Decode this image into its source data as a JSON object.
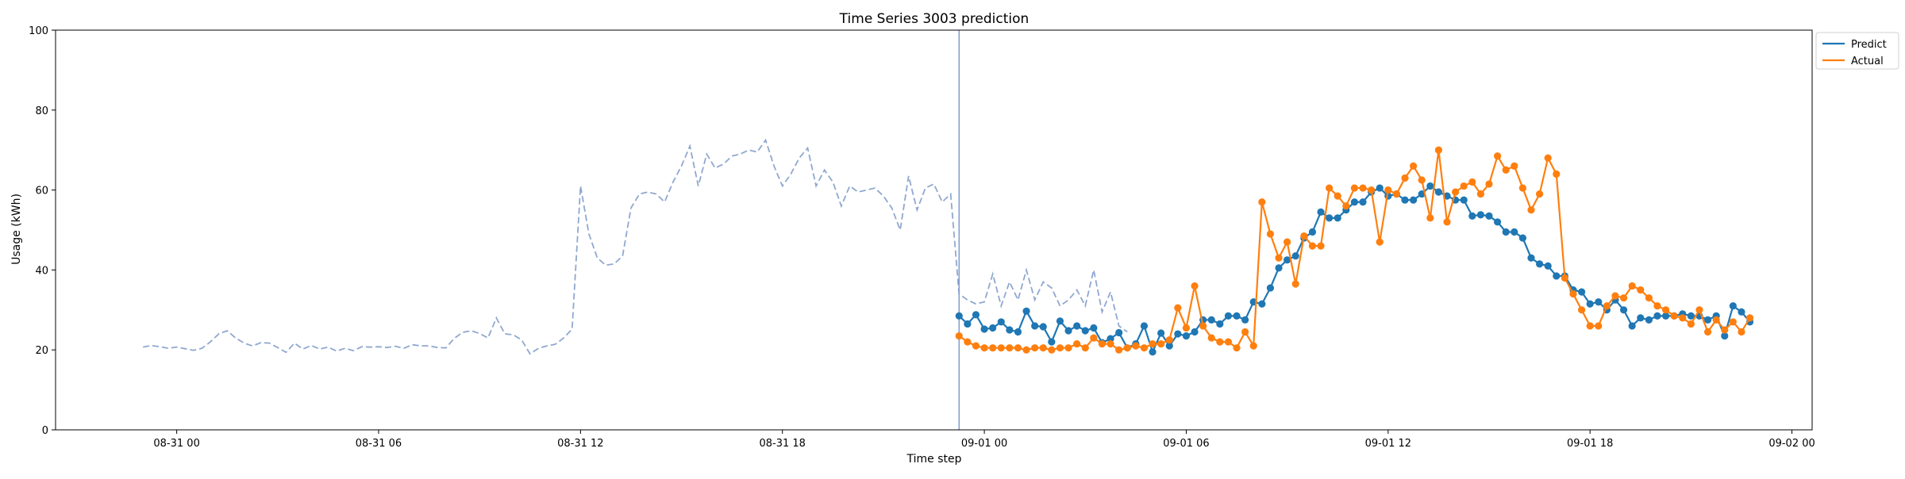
{
  "chart_data": {
    "type": "line",
    "title": "Time Series 3003 prediction",
    "xlabel": "Time step",
    "ylabel": "Usage (kWh)",
    "ylim": [
      0,
      100
    ],
    "yticks": [
      0,
      20,
      40,
      60,
      80,
      100
    ],
    "xlim": [
      "2024-08-30 20:24",
      "2024-09-02 00:36"
    ],
    "xticks": [
      {
        "label": "08-31 00",
        "t": "2024-08-31 00:00"
      },
      {
        "label": "08-31 06",
        "t": "2024-08-31 06:00"
      },
      {
        "label": "08-31 12",
        "t": "2024-08-31 12:00"
      },
      {
        "label": "08-31 18",
        "t": "2024-08-31 18:00"
      },
      {
        "label": "09-01 00",
        "t": "2024-09-01 00:00"
      },
      {
        "label": "09-01 06",
        "t": "2024-09-01 06:00"
      },
      {
        "label": "09-01 12",
        "t": "2024-09-01 12:00"
      },
      {
        "label": "09-01 18",
        "t": "2024-09-01 18:00"
      },
      {
        "label": "09-02 00",
        "t": "2024-09-02 00:00"
      }
    ],
    "x_interval_minutes": 15,
    "grid": false,
    "legend_position": "outside top-right",
    "vline": "2024-08-31 23:15",
    "colors": {
      "history": "#90a8cf",
      "predict": "#1f77b4",
      "actual": "#ff7f0e",
      "vline": "#7a98cc"
    },
    "legend": [
      {
        "label": "Predict",
        "color": "#1f77b4"
      },
      {
        "label": "Actual",
        "color": "#ff7f0e"
      }
    ],
    "history": {
      "start": "2024-08-30 23:00",
      "step_minutes": 15,
      "style": "dashed",
      "values": [
        20.7,
        21.1,
        20.8,
        20.4,
        20.7,
        20.3,
        19.9,
        20.4,
        22.0,
        24.0,
        24.8,
        23.0,
        21.7,
        21.0,
        21.8,
        21.7,
        20.6,
        19.4,
        21.7,
        20.2,
        21.1,
        20.2,
        20.7,
        19.7,
        20.4,
        19.8,
        20.8,
        20.7,
        20.8,
        20.6,
        20.9,
        20.4,
        21.3,
        21.0,
        21.0,
        20.6,
        20.5,
        22.9,
        24.4,
        24.8,
        24.1,
        23.0,
        28.0,
        24.0,
        23.8,
        22.5,
        19.0,
        20.4,
        21.0,
        21.4,
        23.0,
        25.2,
        61.0,
        49.0,
        43.0,
        41.2,
        41.5,
        43.5,
        55.5,
        59.0,
        59.5,
        59.0,
        57.0,
        62.0,
        66.0,
        71.0,
        61.0,
        69.0,
        65.5,
        66.5,
        68.5,
        69.0,
        70.0,
        69.5,
        72.5,
        66.0,
        61.0,
        64.0,
        68.0,
        70.5,
        61.0,
        65.0,
        62.0,
        56.0,
        61.0,
        59.5,
        60.0,
        60.5,
        58.5,
        55.5,
        50.0,
        63.5,
        55.0,
        60.5,
        61.5,
        57.0,
        59.0,
        34.0,
        32.5,
        31.5,
        32.0,
        39.0,
        31.0,
        37.0,
        32.5,
        40.0,
        32.5,
        37.0,
        35.5,
        31.0,
        32.5,
        35.0,
        31.0,
        40.0,
        29.5,
        34.5,
        26.0,
        24.5
      ]
    },
    "series": [
      {
        "name": "Predict",
        "start": "2024-08-31 23:15",
        "step_minutes": 15,
        "values": [
          28.5,
          26.5,
          28.8,
          25.2,
          25.5,
          27.0,
          25.0,
          24.5,
          29.7,
          26.0,
          25.8,
          22.0,
          27.2,
          24.8,
          26.0,
          24.8,
          25.5,
          21.8,
          22.8,
          24.3,
          20.5,
          21.5,
          26.0,
          19.5,
          24.2,
          21.0,
          24.0,
          23.5,
          24.5,
          27.5,
          27.5,
          26.5,
          28.5,
          28.5,
          27.5,
          32.0,
          31.5,
          35.5,
          40.5,
          42.5,
          43.5,
          48.0,
          49.5,
          54.5,
          53.0,
          53.0,
          55.0,
          57.0,
          57.0,
          59.5,
          60.5,
          58.5,
          59.0,
          57.5,
          57.5,
          59.0,
          61.0,
          59.5,
          58.5,
          57.5,
          57.5,
          53.5,
          53.8,
          53.5,
          52.0,
          49.5,
          49.5,
          48.0,
          43.0,
          41.5,
          41.0,
          38.5,
          38.5,
          35.0,
          34.5,
          31.5,
          32.0,
          30.0,
          32.5,
          30.0,
          26.0,
          28.0,
          27.5,
          28.5,
          28.5,
          28.5,
          29.0,
          28.5,
          28.5,
          27.5,
          28.5,
          23.5,
          31.0,
          29.5,
          27.0
        ]
      },
      {
        "name": "Actual",
        "start": "2024-08-31 23:15",
        "step_minutes": 15,
        "values": [
          23.5,
          22.0,
          21.0,
          20.5,
          20.5,
          20.5,
          20.5,
          20.5,
          20.0,
          20.5,
          20.5,
          20.0,
          20.5,
          20.5,
          21.5,
          20.5,
          23.0,
          21.5,
          21.5,
          20.0,
          20.5,
          21.0,
          20.5,
          21.5,
          21.5,
          22.5,
          30.5,
          25.5,
          36.0,
          26.0,
          23.0,
          22.0,
          22.0,
          20.5,
          24.5,
          21.0,
          57.0,
          49.0,
          43.0,
          47.0,
          36.5,
          48.5,
          46.0,
          46.0,
          60.5,
          58.5,
          56.0,
          60.5,
          60.5,
          60.0,
          47.0,
          60.0,
          59.0,
          63.0,
          66.0,
          62.5,
          53.0,
          70.0,
          52.0,
          59.5,
          61.0,
          62.0,
          59.0,
          61.5,
          68.5,
          65.0,
          66.0,
          60.5,
          55.0,
          59.0,
          68.0,
          64.0,
          38.0,
          34.0,
          30.0,
          26.0,
          26.0,
          31.0,
          33.5,
          33.0,
          36.0,
          35.0,
          33.0,
          31.0,
          30.0,
          28.5,
          28.0,
          26.5,
          30.0,
          24.5,
          27.5,
          25.0,
          27.0,
          24.5,
          28.0
        ]
      }
    ]
  }
}
